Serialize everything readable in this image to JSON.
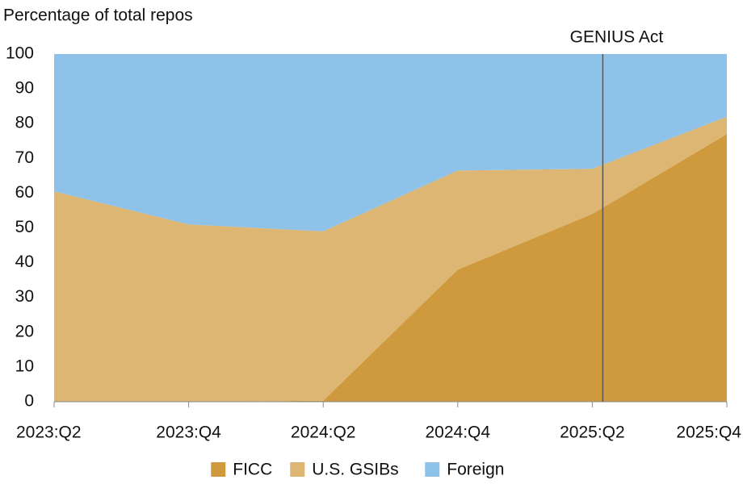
{
  "chart_data": {
    "type": "stacked_area",
    "y_axis_label": "Percentage of total repos",
    "categories": [
      "2023:Q2",
      "2023:Q4",
      "2024:Q2",
      "2024:Q4",
      "2025:Q2",
      "2025:Q4"
    ],
    "series": [
      {
        "name": "FICC",
        "color": "#cf9a3e",
        "values": [
          0,
          0,
          0.3,
          38,
          54,
          77
        ]
      },
      {
        "name": "U.S. GSIBs",
        "color": "#dcb672",
        "values": [
          60.5,
          51,
          48.7,
          28.5,
          13,
          5
        ]
      },
      {
        "name": "Foreign",
        "color": "#8fc2e8",
        "values": [
          39.5,
          49,
          51,
          33.5,
          33,
          18
        ]
      }
    ],
    "ylim": [
      0,
      100
    ],
    "yticks": [
      0,
      10,
      20,
      30,
      40,
      50,
      60,
      70,
      80,
      90,
      100
    ],
    "annotation": {
      "text": "GENIUS Act",
      "category": "2025:Q2"
    },
    "legend": "bottom"
  }
}
